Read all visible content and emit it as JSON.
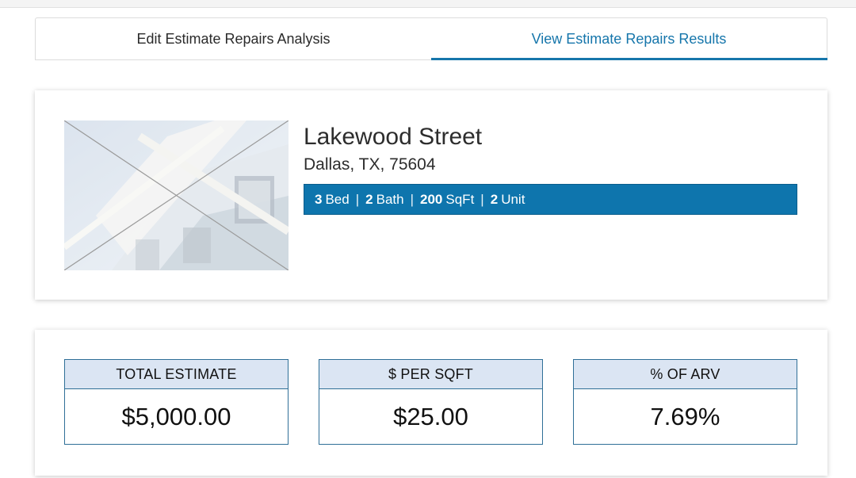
{
  "tabs": [
    {
      "label": "Edit Estimate Repairs Analysis",
      "active": false
    },
    {
      "label": "View Estimate Repairs Results",
      "active": true
    }
  ],
  "property": {
    "street": "Lakewood Street",
    "city_state_zip": "Dallas, TX, 75604",
    "bed_value": "3",
    "bed_label": "Bed",
    "bath_value": "2",
    "bath_label": "Bath",
    "sqft_value": "200",
    "sqft_label": "SqFt",
    "unit_value": "2",
    "unit_label": "Unit",
    "separator": "|"
  },
  "stats": [
    {
      "label": "TOTAL ESTIMATE",
      "value": "$5,000.00"
    },
    {
      "label": "$ PER SQFT",
      "value": "$25.00"
    },
    {
      "label": "% OF ARV",
      "value": "7.69%"
    }
  ],
  "colors": {
    "accent": "#1676ab",
    "spec_bar": "#0e75ad",
    "stat_header": "#dbe5f3",
    "stat_border": "#2f6f97"
  }
}
